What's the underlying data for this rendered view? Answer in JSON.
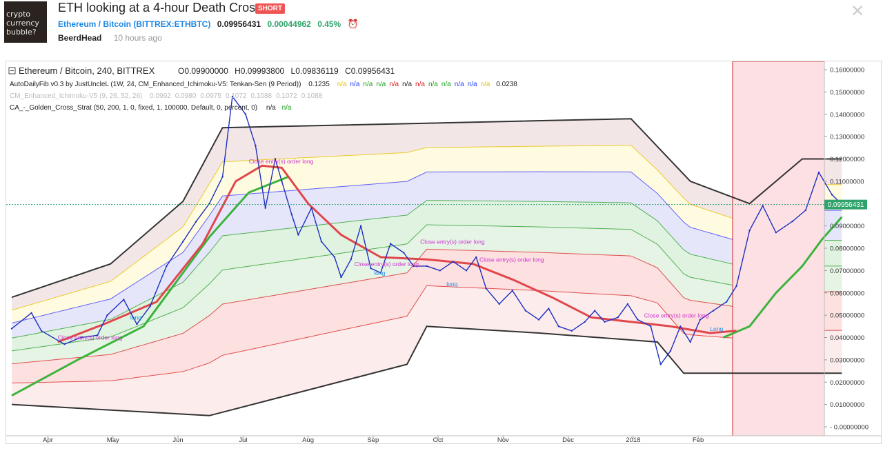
{
  "header": {
    "avatar_text": "crypto currency bubble?",
    "title": "ETH looking at a 4-hour Death Cross",
    "badge": "SHORT",
    "symbol": "Ethereum / Bitcoin (BITTREX:ETHBTC)",
    "price": "0.09956431",
    "change": "0.00044962",
    "change_pct": "0.45%",
    "alarm_icon": "alarm-clock-icon",
    "author": "BeerdHead",
    "time_ago": "10 hours ago",
    "close_icon": "close-icon"
  },
  "legend": {
    "main_title": "Ethereum / Bitcoin, 240, BITTREX",
    "ohlc": {
      "o_label": "O",
      "o": "0.09900000",
      "h_label": "H",
      "h": "0.09993800",
      "l_label": "L",
      "l": "0.09836119",
      "c_label": "C",
      "c": "0.09956431"
    },
    "ind1": "AutoDailyFib v0.3 by JustUncleL (1W, 24, CM_Enhanced_Ichimoku-V5: Tenkan-Sen (9 Period))",
    "ind1_value": "0.1235",
    "ind1_na": [
      "n/a",
      "n/a",
      "n/a",
      "n/a",
      "n/a",
      "n/a",
      "n/a",
      "n/a",
      "n/a",
      "n/a",
      "n/a",
      "n/a"
    ],
    "ind1_na_colors": [
      "#e8c000",
      "#1e3cff",
      "#1a9c1a",
      "#1a9c1a",
      "#d81e1e",
      "#222222",
      "#d81e1e",
      "#1a9c1a",
      "#1a9c1a",
      "#1e3cff",
      "#1e3cff",
      "#e8c000"
    ],
    "ind1_last": "0.0238",
    "ind2": "CM_Enhanced_Ichimoku-V5 (9, 26, 52, 26)",
    "ind2_values": [
      "0.0992",
      "0.0980",
      "0.0975",
      "0.1072",
      "0.1088",
      "0.1072",
      "0.1088"
    ],
    "ind3": "CA_-_Golden_Cross_Strat (50, 200, 1, 0, fixed, 1, 100000, Default, 0, percent, 0)",
    "ind3_na": [
      "n/a",
      "n/a"
    ]
  },
  "chart_data": {
    "type": "line",
    "symbol": "ETHBTC",
    "x_ticks": [
      "Apr",
      "May",
      "Jun",
      "Jul",
      "Aug",
      "Sep",
      "Oct",
      "Nov",
      "Dec",
      "2018",
      "Feb"
    ],
    "y_ticks": [
      "0.16000000",
      "0.15000000",
      "0.14000000",
      "0.13000000",
      "0.12000000",
      "0.11000000",
      "0.10000000",
      "0.09000000",
      "0.08000000",
      "0.07000000",
      "0.06000000",
      "0.05000000",
      "0.04000000",
      "0.03000000",
      "0.02000000",
      "0.01000000",
      "0.00000000"
    ],
    "ylim": [
      -0.001,
      0.164
    ],
    "last_price_label": "0.09956431",
    "price_series": [
      {
        "m": 0.0,
        "v": 0.044
      },
      {
        "m": 0.3,
        "v": 0.051
      },
      {
        "m": 0.45,
        "v": 0.043
      },
      {
        "m": 0.8,
        "v": 0.037
      },
      {
        "m": 1.05,
        "v": 0.04
      },
      {
        "m": 1.3,
        "v": 0.041
      },
      {
        "m": 1.45,
        "v": 0.05
      },
      {
        "m": 1.7,
        "v": 0.057
      },
      {
        "m": 1.9,
        "v": 0.046
      },
      {
        "m": 2.1,
        "v": 0.054
      },
      {
        "m": 2.35,
        "v": 0.072
      },
      {
        "m": 2.6,
        "v": 0.083
      },
      {
        "m": 2.8,
        "v": 0.092
      },
      {
        "m": 3.0,
        "v": 0.1
      },
      {
        "m": 3.2,
        "v": 0.112
      },
      {
        "m": 3.35,
        "v": 0.148
      },
      {
        "m": 3.55,
        "v": 0.14
      },
      {
        "m": 3.7,
        "v": 0.126
      },
      {
        "m": 3.85,
        "v": 0.098
      },
      {
        "m": 4.0,
        "v": 0.12
      },
      {
        "m": 4.1,
        "v": 0.11
      },
      {
        "m": 4.25,
        "v": 0.095
      },
      {
        "m": 4.35,
        "v": 0.086
      },
      {
        "m": 4.55,
        "v": 0.098
      },
      {
        "m": 4.7,
        "v": 0.083
      },
      {
        "m": 4.9,
        "v": 0.076
      },
      {
        "m": 5.0,
        "v": 0.067
      },
      {
        "m": 5.15,
        "v": 0.075
      },
      {
        "m": 5.3,
        "v": 0.09
      },
      {
        "m": 5.45,
        "v": 0.071
      },
      {
        "m": 5.6,
        "v": 0.069
      },
      {
        "m": 5.75,
        "v": 0.082
      },
      {
        "m": 5.95,
        "v": 0.078
      },
      {
        "m": 6.1,
        "v": 0.072
      },
      {
        "m": 6.3,
        "v": 0.072
      },
      {
        "m": 6.5,
        "v": 0.07
      },
      {
        "m": 6.7,
        "v": 0.074
      },
      {
        "m": 6.9,
        "v": 0.07
      },
      {
        "m": 7.05,
        "v": 0.076
      },
      {
        "m": 7.2,
        "v": 0.062
      },
      {
        "m": 7.4,
        "v": 0.055
      },
      {
        "m": 7.6,
        "v": 0.061
      },
      {
        "m": 7.8,
        "v": 0.052
      },
      {
        "m": 8.0,
        "v": 0.048
      },
      {
        "m": 8.15,
        "v": 0.053
      },
      {
        "m": 8.3,
        "v": 0.045
      },
      {
        "m": 8.5,
        "v": 0.043
      },
      {
        "m": 8.7,
        "v": 0.047
      },
      {
        "m": 8.85,
        "v": 0.052
      },
      {
        "m": 9.0,
        "v": 0.047
      },
      {
        "m": 9.2,
        "v": 0.049
      },
      {
        "m": 9.35,
        "v": 0.055
      },
      {
        "m": 9.5,
        "v": 0.048
      },
      {
        "m": 9.7,
        "v": 0.045
      },
      {
        "m": 9.85,
        "v": 0.028
      },
      {
        "m": 10.0,
        "v": 0.034
      },
      {
        "m": 10.15,
        "v": 0.045
      },
      {
        "m": 10.3,
        "v": 0.038
      },
      {
        "m": 10.45,
        "v": 0.048
      },
      {
        "m": 10.65,
        "v": 0.052
      },
      {
        "m": 10.85,
        "v": 0.056
      },
      {
        "m": 11.0,
        "v": 0.063
      },
      {
        "m": 11.2,
        "v": 0.088
      },
      {
        "m": 11.4,
        "v": 0.099
      },
      {
        "m": 11.6,
        "v": 0.087
      },
      {
        "m": 11.85,
        "v": 0.092
      },
      {
        "m": 12.05,
        "v": 0.097
      },
      {
        "m": 12.25,
        "v": 0.114
      },
      {
        "m": 12.45,
        "v": 0.104
      },
      {
        "m": 12.6,
        "v": 0.0996
      }
    ],
    "ma_fast": [
      {
        "m": 0.7,
        "v": 0.038
      },
      {
        "m": 1.4,
        "v": 0.046
      },
      {
        "m": 2.2,
        "v": 0.056
      },
      {
        "m": 2.9,
        "v": 0.082
      },
      {
        "m": 3.4,
        "v": 0.11
      },
      {
        "m": 3.8,
        "v": 0.117
      },
      {
        "m": 4.1,
        "v": 0.116
      },
      {
        "m": 4.5,
        "v": 0.1
      },
      {
        "m": 5.0,
        "v": 0.086
      },
      {
        "m": 5.6,
        "v": 0.076
      },
      {
        "m": 6.3,
        "v": 0.075
      },
      {
        "m": 7.0,
        "v": 0.073
      },
      {
        "m": 7.6,
        "v": 0.066
      },
      {
        "m": 8.2,
        "v": 0.058
      },
      {
        "m": 8.8,
        "v": 0.049
      },
      {
        "m": 9.4,
        "v": 0.047
      },
      {
        "m": 10.0,
        "v": 0.045
      },
      {
        "m": 10.6,
        "v": 0.042
      },
      {
        "m": 11.0,
        "v": 0.043
      }
    ],
    "ma_slow": [
      {
        "m": 0.0,
        "v": 0.014
      },
      {
        "m": 1.0,
        "v": 0.03
      },
      {
        "m": 2.0,
        "v": 0.045
      },
      {
        "m": 3.0,
        "v": 0.085
      },
      {
        "m": 3.6,
        "v": 0.105
      },
      {
        "m": 4.2,
        "v": 0.112
      }
    ],
    "ma_slow2": [
      {
        "m": 10.8,
        "v": 0.04
      },
      {
        "m": 11.2,
        "v": 0.045
      },
      {
        "m": 11.6,
        "v": 0.06
      },
      {
        "m": 12.0,
        "v": 0.072
      },
      {
        "m": 12.3,
        "v": 0.084
      },
      {
        "m": 12.6,
        "v": 0.094
      }
    ],
    "fib_channel": {
      "upper": [
        {
          "m": 0.0,
          "v": 0.058
        },
        {
          "m": 1.5,
          "v": 0.073
        },
        {
          "m": 2.6,
          "v": 0.101
        },
        {
          "m": 3.2,
          "v": 0.134
        },
        {
          "m": 9.4,
          "v": 0.138
        },
        {
          "m": 10.3,
          "v": 0.11
        },
        {
          "m": 11.2,
          "v": 0.1
        },
        {
          "m": 12.0,
          "v": 0.12
        },
        {
          "m": 12.6,
          "v": 0.12
        }
      ],
      "lower": [
        {
          "m": 0.0,
          "v": 0.01
        },
        {
          "m": 3.0,
          "v": 0.005
        },
        {
          "m": 6.0,
          "v": 0.028
        },
        {
          "m": 6.3,
          "v": 0.045
        },
        {
          "m": 8.0,
          "v": 0.042
        },
        {
          "m": 9.8,
          "v": 0.038
        },
        {
          "m": 10.2,
          "v": 0.024
        },
        {
          "m": 12.6,
          "v": 0.024
        }
      ]
    },
    "annotations": [
      {
        "m": 0.7,
        "v": 0.039,
        "text": "Close entry(s) order long",
        "color": "#cc33cc"
      },
      {
        "m": 3.6,
        "v": 0.118,
        "text": "Close entry(s) order long",
        "color": "#cc33cc"
      },
      {
        "m": 5.2,
        "v": 0.072,
        "text": "Close entry(s) order long",
        "color": "#cc33cc"
      },
      {
        "m": 6.2,
        "v": 0.082,
        "text": "Close entry(s) order long",
        "color": "#cc33cc"
      },
      {
        "m": 7.1,
        "v": 0.074,
        "text": "Close entry(s) order long",
        "color": "#cc33cc"
      },
      {
        "m": 9.6,
        "v": 0.049,
        "text": "Close entry(s) order long",
        "color": "#cc33cc"
      },
      {
        "m": 1.8,
        "v": 0.048,
        "text": "long",
        "color": "#1e88e5"
      },
      {
        "m": 5.5,
        "v": 0.068,
        "text": "long",
        "color": "#1e88e5"
      },
      {
        "m": 6.6,
        "v": 0.063,
        "text": "long",
        "color": "#1e88e5"
      },
      {
        "m": 10.6,
        "v": 0.043,
        "text": "Long",
        "color": "#1e88e5"
      }
    ]
  }
}
